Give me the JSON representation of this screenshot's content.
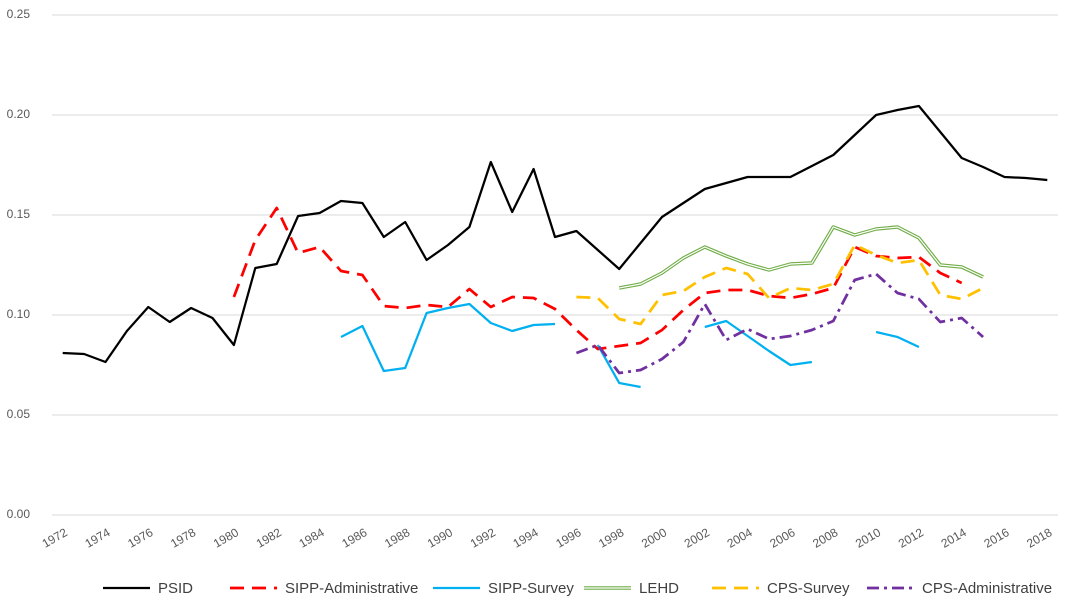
{
  "chart_data": {
    "type": "line",
    "x": [
      1972,
      1973,
      1974,
      1975,
      1976,
      1977,
      1978,
      1979,
      1980,
      1981,
      1982,
      1983,
      1984,
      1985,
      1986,
      1987,
      1988,
      1989,
      1990,
      1991,
      1992,
      1993,
      1994,
      1995,
      1996,
      1997,
      1998,
      1999,
      2000,
      2001,
      2002,
      2003,
      2004,
      2005,
      2006,
      2007,
      2008,
      2009,
      2010,
      2011,
      2012,
      2013,
      2014,
      2015,
      2016,
      2017,
      2018
    ],
    "xlim": [
      1971.5,
      2018.5
    ],
    "xticks": [
      1972,
      1974,
      1976,
      1978,
      1980,
      1982,
      1984,
      1986,
      1988,
      1990,
      1992,
      1994,
      1996,
      1998,
      2000,
      2002,
      2004,
      2006,
      2008,
      2010,
      2012,
      2014,
      2016,
      2018
    ],
    "ylim": [
      0,
      0.25
    ],
    "yticks": [
      {
        "value": 0,
        "label": "0.00"
      },
      0.05,
      {
        "value": 0.1,
        "label": "0.10"
      },
      0.15,
      {
        "value": 0.2,
        "label": "0.20"
      },
      0.25
    ],
    "grid": true,
    "legend": "bottom",
    "series": [
      {
        "name": "PSID",
        "color": "#000000",
        "style": "solid",
        "values": [
          0.081,
          0.0805,
          0.0765,
          0.092,
          0.104,
          0.0965,
          0.1035,
          0.0985,
          0.085,
          0.1235,
          0.1255,
          0.1495,
          0.151,
          0.157,
          0.156,
          0.139,
          0.1465,
          0.1275,
          0.135,
          0.144,
          0.1765,
          0.1515,
          0.173,
          0.139,
          0.142,
          0.1325,
          0.123,
          0.136,
          0.149,
          0.156,
          0.163,
          0.166,
          0.169,
          0.169,
          0.169,
          0.1745,
          0.18,
          0.19,
          0.2,
          0.2025,
          0.2045,
          0.1915,
          0.1785,
          0.174,
          0.169,
          0.1685,
          0.1675
        ]
      },
      {
        "name": "SIPP-Administrative",
        "color": "#ff0000",
        "style": "dashed",
        "values": [
          null,
          null,
          null,
          null,
          null,
          null,
          null,
          null,
          0.109,
          0.1375,
          0.1535,
          0.131,
          0.134,
          0.122,
          0.12,
          0.1045,
          0.1035,
          0.105,
          0.104,
          0.113,
          0.104,
          0.109,
          0.1085,
          0.103,
          0.0925,
          0.083,
          0.0845,
          0.086,
          0.0925,
          0.1025,
          0.111,
          0.1125,
          0.1125,
          0.1095,
          0.1085,
          0.1105,
          0.1135,
          0.134,
          0.1295,
          0.1285,
          0.129,
          0.121,
          0.116,
          null,
          null,
          null,
          null
        ]
      },
      {
        "name": "SIPP-Survey",
        "color": "#00b0f0",
        "style": "solid",
        "values": [
          null,
          null,
          null,
          null,
          null,
          null,
          null,
          null,
          null,
          null,
          null,
          null,
          null,
          0.089,
          0.0945,
          0.072,
          0.0735,
          0.101,
          0.1035,
          0.1055,
          0.096,
          0.092,
          0.095,
          0.0955,
          null,
          0.085,
          0.066,
          0.064,
          null,
          null,
          0.094,
          0.097,
          0.0895,
          0.082,
          0.075,
          0.0765,
          null,
          null,
          0.0915,
          0.089,
          0.084,
          null,
          null,
          null,
          null,
          null,
          null
        ]
      },
      {
        "name": "LEHD",
        "color": "#70ad47",
        "style": "double",
        "values": [
          null,
          null,
          null,
          null,
          null,
          null,
          null,
          null,
          null,
          null,
          null,
          null,
          null,
          null,
          null,
          null,
          null,
          null,
          null,
          null,
          null,
          null,
          null,
          null,
          null,
          null,
          0.1135,
          0.1155,
          0.121,
          0.1285,
          0.134,
          0.1295,
          0.1255,
          0.1225,
          0.1255,
          0.126,
          0.144,
          0.14,
          0.143,
          0.144,
          0.1385,
          0.125,
          0.124,
          0.119,
          null,
          null,
          null
        ]
      },
      {
        "name": "CPS-Survey",
        "color": "#ffc000",
        "style": "dashed",
        "values": [
          null,
          null,
          null,
          null,
          null,
          null,
          null,
          null,
          null,
          null,
          null,
          null,
          null,
          null,
          null,
          null,
          null,
          null,
          null,
          null,
          null,
          null,
          null,
          null,
          0.109,
          0.1085,
          0.098,
          0.0955,
          0.11,
          0.112,
          0.119,
          0.1235,
          0.1205,
          0.1085,
          0.1135,
          0.1125,
          0.1155,
          0.135,
          0.13,
          0.126,
          0.1275,
          0.11,
          0.108,
          0.1135,
          null,
          null,
          null
        ]
      },
      {
        "name": "CPS-Administrative",
        "color": "#7030a0",
        "style": "dashdot",
        "values": [
          null,
          null,
          null,
          null,
          null,
          null,
          null,
          null,
          null,
          null,
          null,
          null,
          null,
          null,
          null,
          null,
          null,
          null,
          null,
          null,
          null,
          null,
          null,
          null,
          0.081,
          0.085,
          0.071,
          0.0725,
          0.078,
          0.0865,
          0.1055,
          0.0875,
          0.093,
          0.088,
          0.0895,
          0.0925,
          0.097,
          0.1175,
          0.1205,
          0.111,
          0.108,
          0.0965,
          0.0985,
          0.089,
          null,
          null,
          null
        ]
      }
    ]
  }
}
